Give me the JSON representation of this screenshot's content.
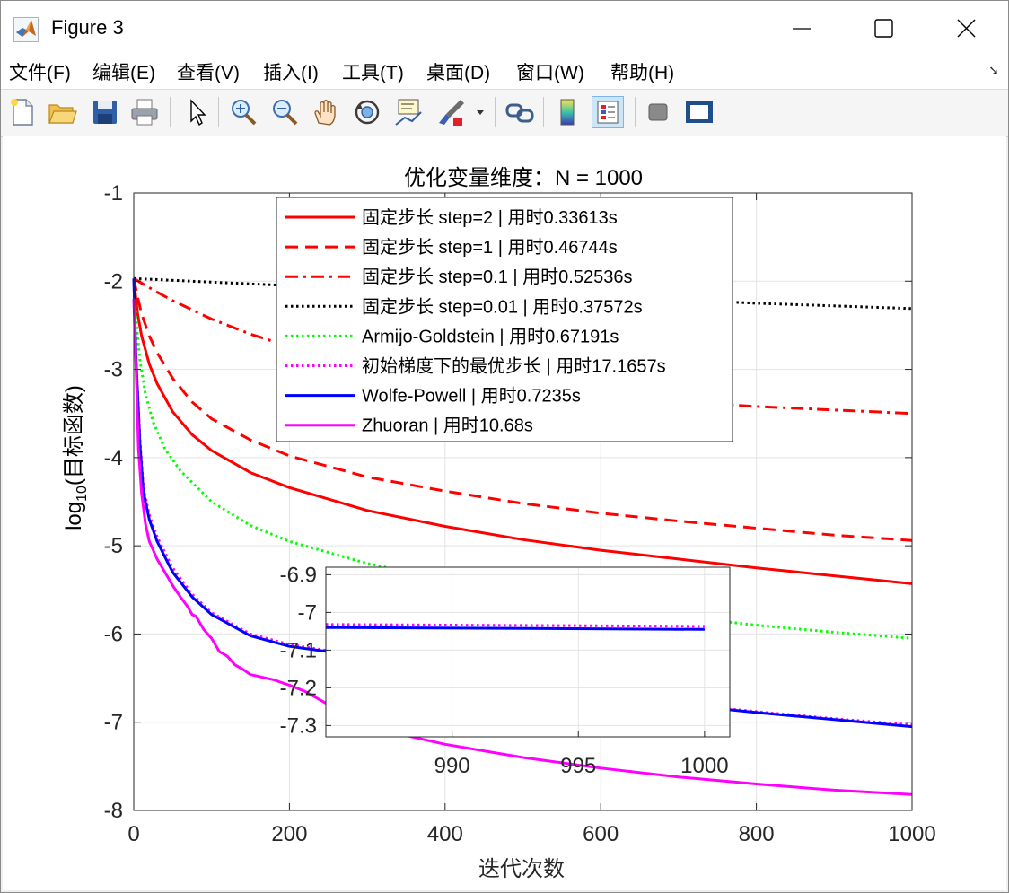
{
  "window": {
    "title": "Figure 3"
  },
  "menu": [
    "文件(F)",
    "编辑(E)",
    "查看(V)",
    "插入(I)",
    "工具(T)",
    "桌面(D)",
    "窗口(W)",
    "帮助(H)"
  ],
  "toolbar": {
    "buttons": [
      "new-figure",
      "open-file",
      "save",
      "print",
      "edit-plot",
      "zoom-in",
      "zoom-out",
      "pan",
      "rotate-3d",
      "data-cursor",
      "brush",
      "link-plot",
      "insert-colorbar",
      "insert-legend",
      "hide-plot-tools",
      "show-plot-tools"
    ]
  },
  "colors": {
    "red": "#ff0000",
    "black": "#000000",
    "green": "#00ff00",
    "magenta": "#ff00ff",
    "blue": "#0000ff",
    "grid": "#e3e3e3"
  },
  "chart_data": {
    "type": "line",
    "title": "优化变量维度：N = 1000",
    "xlabel": "迭代次数",
    "ylabel": "log10(目标函数)",
    "ylabel_main": "log",
    "ylabel_sub": "10",
    "ylabel_rest": "(目标函数)",
    "xlim": [
      0,
      1000
    ],
    "ylim": [
      -8,
      -1
    ],
    "xticks": [
      0,
      200,
      400,
      600,
      800,
      1000
    ],
    "yticks": [
      -8,
      -7,
      -6,
      -5,
      -4,
      -3,
      -2,
      -1
    ],
    "grid": true,
    "legend_position": "top-center",
    "series": [
      {
        "name": "固定步长 step=2 | 用时0.33613s",
        "color": "#ff0000",
        "dash": "solid",
        "x": [
          0,
          5,
          10,
          20,
          30,
          50,
          75,
          100,
          150,
          200,
          300,
          400,
          500,
          600,
          700,
          800,
          900,
          1000
        ],
        "y": [
          -1.97,
          -2.37,
          -2.62,
          -2.94,
          -3.16,
          -3.48,
          -3.74,
          -3.92,
          -4.17,
          -4.34,
          -4.6,
          -4.78,
          -4.93,
          -5.05,
          -5.15,
          -5.25,
          -5.34,
          -5.43
        ]
      },
      {
        "name": "固定步长 step=1 | 用时0.46744s",
        "color": "#ff0000",
        "dash": "dashed",
        "x": [
          0,
          5,
          10,
          20,
          30,
          50,
          75,
          100,
          150,
          200,
          300,
          400,
          500,
          600,
          700,
          800,
          900,
          1000
        ],
        "y": [
          -1.97,
          -2.18,
          -2.37,
          -2.62,
          -2.81,
          -3.1,
          -3.37,
          -3.56,
          -3.8,
          -3.98,
          -4.22,
          -4.38,
          -4.52,
          -4.63,
          -4.72,
          -4.8,
          -4.88,
          -4.94
        ]
      },
      {
        "name": "固定步长 step=0.1 | 用时0.52536s",
        "color": "#ff0000",
        "dash": "dashdot",
        "x": [
          0,
          25,
          50,
          100,
          150,
          200,
          300,
          400,
          500,
          600,
          700,
          800,
          900,
          1000
        ],
        "y": [
          -1.97,
          -2.1,
          -2.22,
          -2.43,
          -2.6,
          -2.74,
          -2.96,
          -3.11,
          -3.22,
          -3.31,
          -3.37,
          -3.42,
          -3.46,
          -3.5
        ]
      },
      {
        "name": "固定步长 step=0.01 | 用时0.37572s",
        "color": "#000000",
        "dash": "dotted",
        "x": [
          0,
          100,
          200,
          300,
          400,
          500,
          600,
          700,
          800,
          900,
          1000
        ],
        "y": [
          -1.97,
          -2.01,
          -2.05,
          -2.08,
          -2.12,
          -2.15,
          -2.18,
          -2.21,
          -2.25,
          -2.28,
          -2.31
        ]
      },
      {
        "name": "Armijo-Goldstein | 用时0.67191s",
        "color": "#00ff00",
        "dash": "dotted",
        "x": [
          0,
          3,
          8,
          15,
          25,
          40,
          60,
          100,
          150,
          200,
          300,
          400,
          500,
          600,
          700,
          800,
          900,
          1000
        ],
        "y": [
          -1.97,
          -2.45,
          -2.9,
          -3.28,
          -3.6,
          -3.9,
          -4.15,
          -4.5,
          -4.77,
          -4.95,
          -5.2,
          -5.38,
          -5.55,
          -5.68,
          -5.8,
          -5.9,
          -5.98,
          -6.05
        ]
      },
      {
        "name": "初始梯度下的最优步长 | 用时17.1657s",
        "color": "#ff00ff",
        "dash": "dotted",
        "x": [
          0,
          3,
          8,
          12,
          15,
          20,
          30,
          50,
          75,
          100,
          150,
          200,
          250,
          300,
          400,
          500,
          600,
          700,
          800,
          900,
          1000
        ],
        "y": [
          -1.97,
          -2.9,
          -3.8,
          -4.3,
          -4.45,
          -4.65,
          -4.9,
          -5.25,
          -5.55,
          -5.76,
          -6.0,
          -6.12,
          -6.19,
          -6.24,
          -6.4,
          -6.55,
          -6.68,
          -6.79,
          -6.88,
          -6.96,
          -7.03
        ]
      },
      {
        "name": "Wolfe-Powell | 用时0.7235s",
        "color": "#0000ff",
        "dash": "solid",
        "x": [
          0,
          3,
          8,
          12,
          15,
          20,
          30,
          50,
          75,
          100,
          150,
          200,
          250,
          300,
          400,
          500,
          600,
          700,
          800,
          900,
          1000
        ],
        "y": [
          -1.97,
          -2.9,
          -3.85,
          -4.35,
          -4.5,
          -4.7,
          -4.95,
          -5.3,
          -5.58,
          -5.78,
          -6.02,
          -6.14,
          -6.2,
          -6.25,
          -6.41,
          -6.56,
          -6.69,
          -6.8,
          -6.89,
          -6.97,
          -7.05
        ]
      },
      {
        "name": "Zhuoran | 用时10.68s",
        "color": "#ff00ff",
        "dash": "solid",
        "x": [
          0,
          3,
          6,
          10,
          15,
          20,
          30,
          40,
          50,
          60,
          70,
          75,
          80,
          90,
          100,
          110,
          120,
          130,
          140,
          150,
          160,
          170,
          180,
          190,
          200,
          220,
          250,
          300,
          350,
          400,
          500,
          600,
          700,
          800,
          900,
          1000
        ],
        "y": [
          -2.2,
          -3.0,
          -3.9,
          -4.4,
          -4.75,
          -4.95,
          -5.15,
          -5.3,
          -5.45,
          -5.58,
          -5.7,
          -5.78,
          -5.8,
          -5.95,
          -6.05,
          -6.2,
          -6.25,
          -6.35,
          -6.4,
          -6.46,
          -6.48,
          -6.5,
          -6.52,
          -6.55,
          -6.58,
          -6.65,
          -6.8,
          -7.05,
          -7.15,
          -7.25,
          -7.4,
          -7.52,
          -7.62,
          -7.7,
          -7.77,
          -7.82
        ]
      }
    ],
    "inset": {
      "xlim": [
        985,
        1001
      ],
      "ylim": [
        -7.33,
        -6.88
      ],
      "xticks": [
        990,
        995,
        1000
      ],
      "yticks": [
        -6.9,
        -7,
        -7.1,
        -7.2,
        -7.3
      ],
      "series": [
        {
          "color": "#ff00ff",
          "dash": "dotted",
          "x": [
            985,
            1000
          ],
          "y": [
            -7.032,
            -7.037
          ]
        },
        {
          "color": "#0000ff",
          "dash": "solid",
          "x": [
            985,
            1000
          ],
          "y": [
            -7.04,
            -7.045
          ]
        }
      ]
    }
  }
}
